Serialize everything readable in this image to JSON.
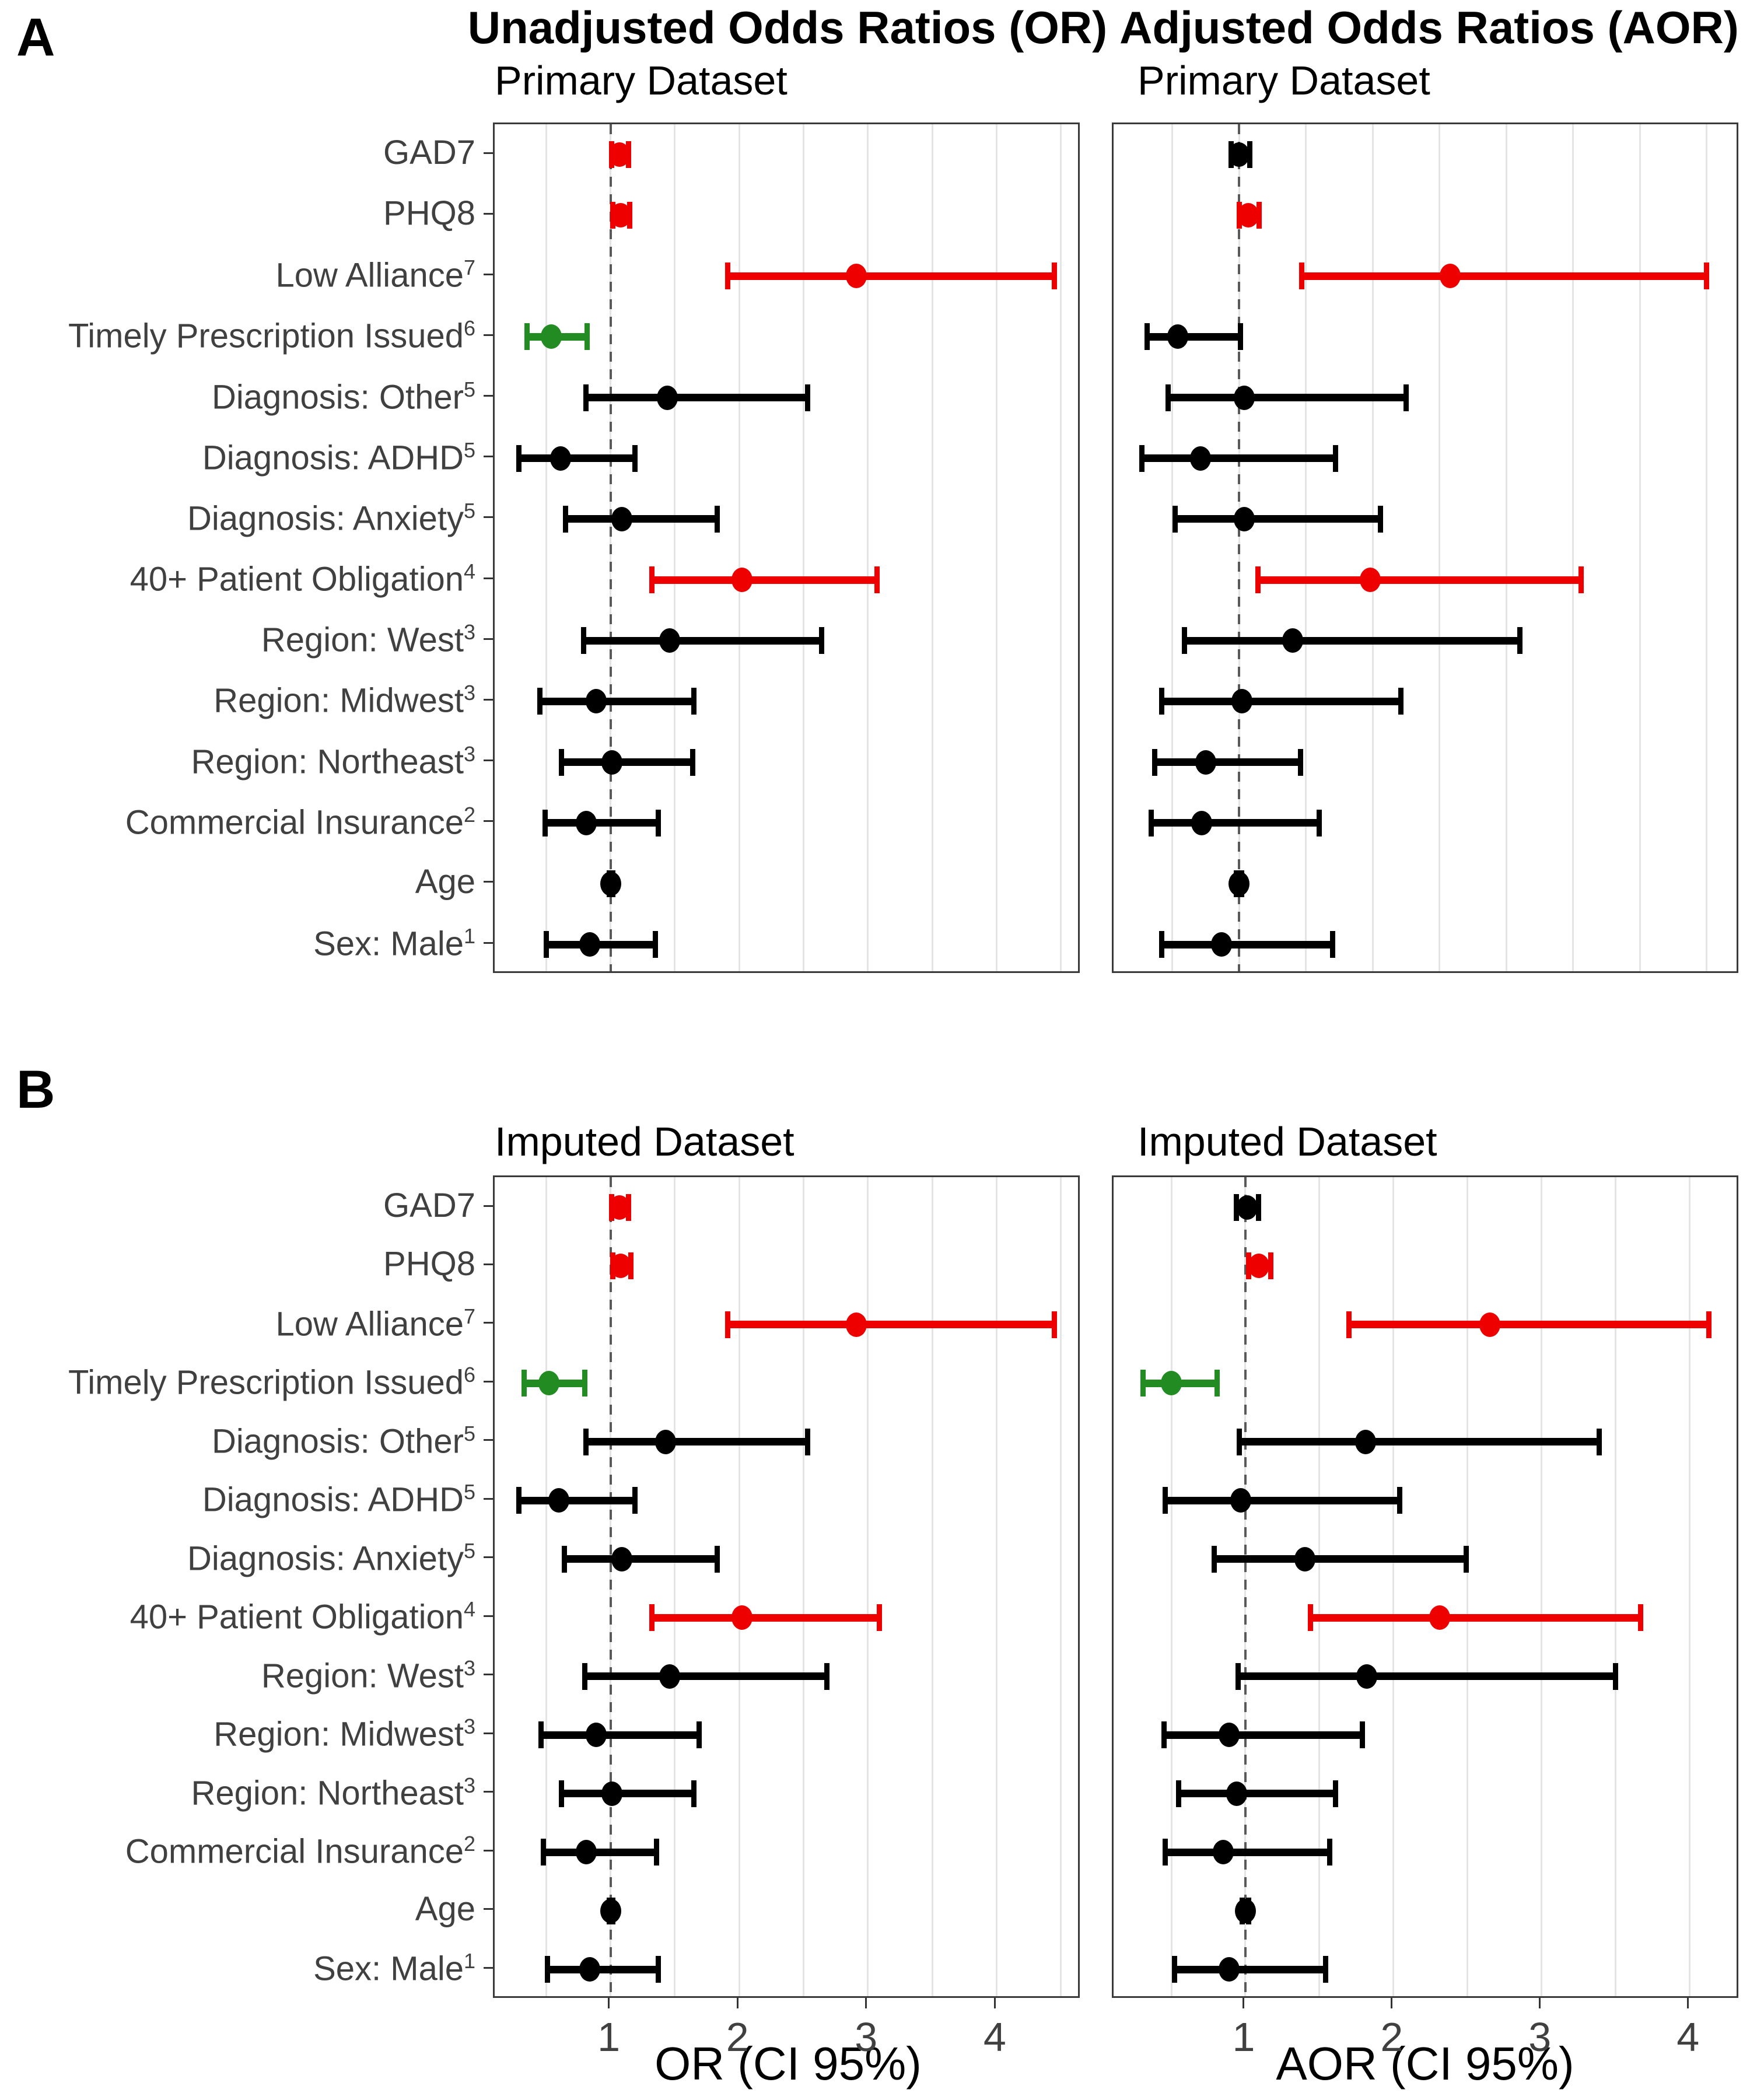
{
  "figure": {
    "panel_a_label": "A",
    "panel_b_label": "B",
    "column_titles": [
      "Unadjusted Odds Ratios (OR)",
      "Adjusted Odds Ratios (AOR)"
    ],
    "panel_a_subtitle_left": "Primary Dataset",
    "panel_a_subtitle_right": "Primary Dataset",
    "panel_b_subtitle_left": "Imputed Dataset",
    "panel_b_subtitle_right": "Imputed Dataset",
    "x_axis_title_left": "OR (CI 95%)",
    "x_axis_title_right": "AOR (CI 95%)",
    "x_tick_labels": [
      "1",
      "2",
      "3",
      "4"
    ],
    "colors": {
      "significant_above_1": "#ee0000",
      "significant_below_1": "#228B22",
      "nonsignificant": "#000000",
      "axis_text": "#404040",
      "gridline": "#e4e4e4",
      "reference_line": "#595959",
      "panel_border": "#3a3a3a"
    }
  },
  "chart_data": [
    {
      "type": "scatter",
      "subtype": "forest-plot",
      "title": "Unadjusted Odds Ratios (OR)",
      "subtitle": "Primary Dataset",
      "xlabel": "OR (CI 95%)",
      "x_ticks": [
        1,
        2,
        3,
        4
      ],
      "xlim": [
        0.1,
        4.66
      ],
      "grid_step": 0.5,
      "grid_max": 4.5,
      "reference_line": 1,
      "show_x_tick_labels": false,
      "points": [
        {
          "label": "GAD7",
          "sup": "",
          "value": 1.07,
          "ci_low": 1.01,
          "ci_high": 1.14,
          "color": "red"
        },
        {
          "label": "PHQ8",
          "sup": "",
          "value": 1.08,
          "ci_low": 1.02,
          "ci_high": 1.15,
          "color": "red"
        },
        {
          "label": "Low Alliance",
          "sup": "7",
          "value": 2.91,
          "ci_low": 1.91,
          "ci_high": 4.45,
          "color": "red"
        },
        {
          "label": "Timely Prescription Issued",
          "sup": "6",
          "value": 0.54,
          "ci_low": 0.35,
          "ci_high": 0.82,
          "color": "green"
        },
        {
          "label": "Diagnosis: Other",
          "sup": "5",
          "value": 1.44,
          "ci_low": 0.81,
          "ci_high": 2.53,
          "color": "black"
        },
        {
          "label": "Diagnosis: ADHD",
          "sup": "5",
          "value": 0.61,
          "ci_low": 0.29,
          "ci_high": 1.19,
          "color": "black"
        },
        {
          "label": "Diagnosis: Anxiety",
          "sup": "5",
          "value": 1.09,
          "ci_low": 0.65,
          "ci_high": 1.83,
          "color": "black"
        },
        {
          "label": "40+ Patient Obligation",
          "sup": "4",
          "value": 2.02,
          "ci_low": 1.32,
          "ci_high": 3.07,
          "color": "red"
        },
        {
          "label": "Region: West",
          "sup": "3",
          "value": 1.46,
          "ci_low": 0.79,
          "ci_high": 2.64,
          "color": "black"
        },
        {
          "label": "Region: Midwest",
          "sup": "3",
          "value": 0.89,
          "ci_low": 0.45,
          "ci_high": 1.65,
          "color": "black"
        },
        {
          "label": "Region: Northeast",
          "sup": "3",
          "value": 1.01,
          "ci_low": 0.62,
          "ci_high": 1.64,
          "color": "black"
        },
        {
          "label": "Commercial Insurance",
          "sup": "2",
          "value": 0.81,
          "ci_low": 0.49,
          "ci_high": 1.37,
          "color": "black"
        },
        {
          "label": "Age",
          "sup": "",
          "value": 1.0,
          "ci_low": 0.99,
          "ci_high": 1.02,
          "color": "black"
        },
        {
          "label": "Sex: Male",
          "sup": "1",
          "value": 0.84,
          "ci_low": 0.5,
          "ci_high": 1.35,
          "color": "black"
        }
      ]
    },
    {
      "type": "scatter",
      "subtype": "forest-plot",
      "title": "Adjusted Odds Ratios (AOR)",
      "subtitle": "Primary Dataset",
      "xlabel": "AOR (CI 95%)",
      "x_ticks": [
        1,
        2,
        3,
        4
      ],
      "xlim": [
        0.06,
        4.75
      ],
      "grid_step": 0.5,
      "grid_max": 4.5,
      "reference_line": 1,
      "show_x_tick_labels": false,
      "points": [
        {
          "label": "GAD7",
          "sup": "",
          "value": 1.0,
          "ci_low": 0.94,
          "ci_high": 1.08,
          "color": "black"
        },
        {
          "label": "PHQ8",
          "sup": "",
          "value": 1.07,
          "ci_low": 1.0,
          "ci_high": 1.15,
          "color": "red"
        },
        {
          "label": "Low Alliance",
          "sup": "7",
          "value": 2.58,
          "ci_low": 1.47,
          "ci_high": 4.5,
          "color": "red"
        },
        {
          "label": "Timely Prescription Issued",
          "sup": "6",
          "value": 0.54,
          "ci_low": 0.31,
          "ci_high": 1.01,
          "color": "black"
        },
        {
          "label": "Diagnosis: Other",
          "sup": "5",
          "value": 1.04,
          "ci_low": 0.47,
          "ci_high": 2.25,
          "color": "black"
        },
        {
          "label": "Diagnosis: ADHD",
          "sup": "5",
          "value": 0.71,
          "ci_low": 0.27,
          "ci_high": 1.72,
          "color": "black"
        },
        {
          "label": "Diagnosis: Anxiety",
          "sup": "5",
          "value": 1.04,
          "ci_low": 0.52,
          "ci_high": 2.06,
          "color": "black"
        },
        {
          "label": "40+ Patient Obligation",
          "sup": "4",
          "value": 1.98,
          "ci_low": 1.14,
          "ci_high": 3.56,
          "color": "red"
        },
        {
          "label": "Region: West",
          "sup": "3",
          "value": 1.4,
          "ci_low": 0.59,
          "ci_high": 3.1,
          "color": "black"
        },
        {
          "label": "Region: Midwest",
          "sup": "3",
          "value": 1.02,
          "ci_low": 0.42,
          "ci_high": 2.21,
          "color": "black"
        },
        {
          "label": "Region: Northeast",
          "sup": "3",
          "value": 0.75,
          "ci_low": 0.37,
          "ci_high": 1.46,
          "color": "black"
        },
        {
          "label": "Commercial Insurance",
          "sup": "2",
          "value": 0.72,
          "ci_low": 0.34,
          "ci_high": 1.6,
          "color": "black"
        },
        {
          "label": "Age",
          "sup": "",
          "value": 1.0,
          "ci_low": 0.98,
          "ci_high": 1.02,
          "color": "black"
        },
        {
          "label": "Sex: Male",
          "sup": "1",
          "value": 0.87,
          "ci_low": 0.42,
          "ci_high": 1.7,
          "color": "black"
        }
      ]
    },
    {
      "type": "scatter",
      "subtype": "forest-plot",
      "title": "Unadjusted Odds Ratios (OR)",
      "subtitle": "Imputed Dataset",
      "xlabel": "OR (CI 95%)",
      "x_ticks": [
        1,
        2,
        3,
        4
      ],
      "xlim": [
        0.1,
        4.66
      ],
      "grid_step": 0.5,
      "grid_max": 4.5,
      "reference_line": 1,
      "show_x_tick_labels": true,
      "points": [
        {
          "label": "GAD7",
          "sup": "",
          "value": 1.07,
          "ci_low": 1.01,
          "ci_high": 1.14,
          "color": "red"
        },
        {
          "label": "PHQ8",
          "sup": "",
          "value": 1.08,
          "ci_low": 1.02,
          "ci_high": 1.16,
          "color": "red"
        },
        {
          "label": "Low Alliance",
          "sup": "7",
          "value": 2.91,
          "ci_low": 1.91,
          "ci_high": 4.45,
          "color": "red"
        },
        {
          "label": "Timely Prescription Issued",
          "sup": "6",
          "value": 0.52,
          "ci_low": 0.33,
          "ci_high": 0.8,
          "color": "green"
        },
        {
          "label": "Diagnosis: Other",
          "sup": "5",
          "value": 1.43,
          "ci_low": 0.81,
          "ci_high": 2.53,
          "color": "black"
        },
        {
          "label": "Diagnosis: ADHD",
          "sup": "5",
          "value": 0.6,
          "ci_low": 0.29,
          "ci_high": 1.19,
          "color": "black"
        },
        {
          "label": "Diagnosis: Anxiety",
          "sup": "5",
          "value": 1.09,
          "ci_low": 0.64,
          "ci_high": 1.83,
          "color": "black"
        },
        {
          "label": "40+ Patient Obligation",
          "sup": "4",
          "value": 2.02,
          "ci_low": 1.32,
          "ci_high": 3.09,
          "color": "red"
        },
        {
          "label": "Region: West",
          "sup": "3",
          "value": 1.46,
          "ci_low": 0.8,
          "ci_high": 2.68,
          "color": "black"
        },
        {
          "label": "Region: Midwest",
          "sup": "3",
          "value": 0.89,
          "ci_low": 0.46,
          "ci_high": 1.69,
          "color": "black"
        },
        {
          "label": "Region: Northeast",
          "sup": "3",
          "value": 1.01,
          "ci_low": 0.62,
          "ci_high": 1.65,
          "color": "black"
        },
        {
          "label": "Commercial Insurance",
          "sup": "2",
          "value": 0.81,
          "ci_low": 0.48,
          "ci_high": 1.36,
          "color": "black"
        },
        {
          "label": "Age",
          "sup": "",
          "value": 1.0,
          "ci_low": 0.99,
          "ci_high": 1.02,
          "color": "black"
        },
        {
          "label": "Sex: Male",
          "sup": "1",
          "value": 0.84,
          "ci_low": 0.51,
          "ci_high": 1.37,
          "color": "black"
        }
      ]
    },
    {
      "type": "scatter",
      "subtype": "forest-plot",
      "title": "Adjusted Odds Ratios (AOR)",
      "subtitle": "Imputed Dataset",
      "xlabel": "AOR (CI 95%)",
      "x_ticks": [
        1,
        2,
        3,
        4
      ],
      "xlim": [
        0.11,
        4.34
      ],
      "grid_step": 0.5,
      "grid_max": 4.0,
      "reference_line": 1,
      "show_x_tick_labels": true,
      "points": [
        {
          "label": "GAD7",
          "sup": "",
          "value": 1.01,
          "ci_low": 0.94,
          "ci_high": 1.09,
          "color": "black"
        },
        {
          "label": "PHQ8",
          "sup": "",
          "value": 1.09,
          "ci_low": 1.02,
          "ci_high": 1.17,
          "color": "red"
        },
        {
          "label": "Low Alliance",
          "sup": "7",
          "value": 2.65,
          "ci_low": 1.7,
          "ci_high": 4.13,
          "color": "red"
        },
        {
          "label": "Timely Prescription Issued",
          "sup": "6",
          "value": 0.5,
          "ci_low": 0.31,
          "ci_high": 0.81,
          "color": "green"
        },
        {
          "label": "Diagnosis: Other",
          "sup": "5",
          "value": 1.81,
          "ci_low": 0.96,
          "ci_high": 3.39,
          "color": "black"
        },
        {
          "label": "Diagnosis: ADHD",
          "sup": "5",
          "value": 0.97,
          "ci_low": 0.46,
          "ci_high": 2.04,
          "color": "black"
        },
        {
          "label": "Diagnosis: Anxiety",
          "sup": "5",
          "value": 1.4,
          "ci_low": 0.79,
          "ci_high": 2.49,
          "color": "black"
        },
        {
          "label": "40+ Patient Obligation",
          "sup": "4",
          "value": 2.31,
          "ci_low": 1.44,
          "ci_high": 3.67,
          "color": "red"
        },
        {
          "label": "Region: West",
          "sup": "3",
          "value": 1.82,
          "ci_low": 0.95,
          "ci_high": 3.5,
          "color": "black"
        },
        {
          "label": "Region: Midwest",
          "sup": "3",
          "value": 0.89,
          "ci_low": 0.45,
          "ci_high": 1.79,
          "color": "black"
        },
        {
          "label": "Region: Northeast",
          "sup": "3",
          "value": 0.94,
          "ci_low": 0.55,
          "ci_high": 1.61,
          "color": "black"
        },
        {
          "label": "Commercial Insurance",
          "sup": "2",
          "value": 0.85,
          "ci_low": 0.46,
          "ci_high": 1.57,
          "color": "black"
        },
        {
          "label": "Age",
          "sup": "",
          "value": 1.0,
          "ci_low": 0.98,
          "ci_high": 1.02,
          "color": "black"
        },
        {
          "label": "Sex: Male",
          "sup": "1",
          "value": 0.89,
          "ci_low": 0.52,
          "ci_high": 1.54,
          "color": "black"
        }
      ]
    }
  ]
}
